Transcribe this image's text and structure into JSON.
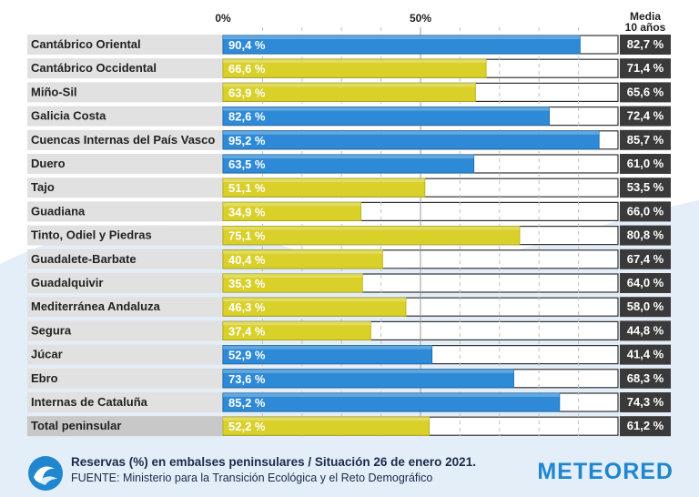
{
  "chart_data": {
    "type": "bar",
    "title": "Reservas (%) en embalses peninsulares / Situación 26 de enero 2021.",
    "source": "FUENTE: Ministerio para la Transición Ecológica y el Reto Demográfico",
    "xlim": [
      0,
      100
    ],
    "x_ticks": [
      "0%",
      "50%"
    ],
    "avg_header": [
      "Media",
      "10 años"
    ],
    "categories": [
      "Cantábrico Oriental",
      "Cantábrico Occidental",
      "Miño-Sil",
      "Galicia Costa",
      "Cuencas Internas del País Vasco",
      "Duero",
      "Tajo",
      "Guadiana",
      "Tinto, Odiel y Piedras",
      "Guadalete-Barbate",
      "Guadalquivir",
      "Mediterránea Andaluza",
      "Segura",
      "Júcar",
      "Ebro",
      "Internas de Cataluña",
      "Total peninsular"
    ],
    "series": [
      {
        "name": "Reservas actuales (%)",
        "values": [
          90.4,
          66.6,
          63.9,
          82.6,
          95.2,
          63.5,
          51.1,
          34.9,
          75.1,
          40.4,
          35.3,
          46.3,
          37.4,
          52.9,
          73.6,
          85.2,
          52.2
        ],
        "labels": [
          "90,4 %",
          "66,6 %",
          "63,9 %",
          "82,6 %",
          "95,2 %",
          "63,5 %",
          "51,1 %",
          "34,9 %",
          "75,1 %",
          "40,4 %",
          "35,3 %",
          "46,3 %",
          "37,4 %",
          "52,9 %",
          "73,6 %",
          "85,2 %",
          "52,2 %"
        ],
        "colors": [
          "blue",
          "yellow",
          "yellow",
          "blue",
          "blue",
          "blue",
          "yellow",
          "yellow",
          "yellow",
          "yellow",
          "yellow",
          "yellow",
          "yellow",
          "blue",
          "blue",
          "blue",
          "yellow"
        ]
      },
      {
        "name": "Media 10 años (%)",
        "values": [
          82.7,
          71.4,
          65.6,
          72.4,
          85.7,
          61.0,
          53.5,
          66.0,
          80.8,
          67.4,
          64.0,
          58.0,
          44.8,
          41.4,
          68.3,
          74.3,
          61.2
        ],
        "labels": [
          "82,7 %",
          "71,4 %",
          "65,6 %",
          "72,4 %",
          "85,7 %",
          "61,0 %",
          "53,5 %",
          "66,0 %",
          "80,8 %",
          "67,4 %",
          "64,0 %",
          "58,0 %",
          "44,8 %",
          "41,4 %",
          "68,3 %",
          "74,3 %",
          "61,2 %"
        ]
      }
    ],
    "palette": {
      "blue": "#2e8ad6",
      "blue_dark": "#1f6fb5",
      "yellow": "#d9d02a",
      "yellow_dark": "#bdb41a",
      "label_bg": "#e1e1e1",
      "total_label_bg": "#c8c8c8",
      "avg_bg": "#3a3a3a",
      "grid": "#c0c0c0"
    }
  },
  "footer": {
    "caption_line1": "Reservas (%) en embalses peninsulares / Situación 26 de enero 2021.",
    "caption_line2": "FUENTE: Ministerio para la Transición Ecológica y el Reto Demográfico",
    "brand": "METEORED"
  }
}
